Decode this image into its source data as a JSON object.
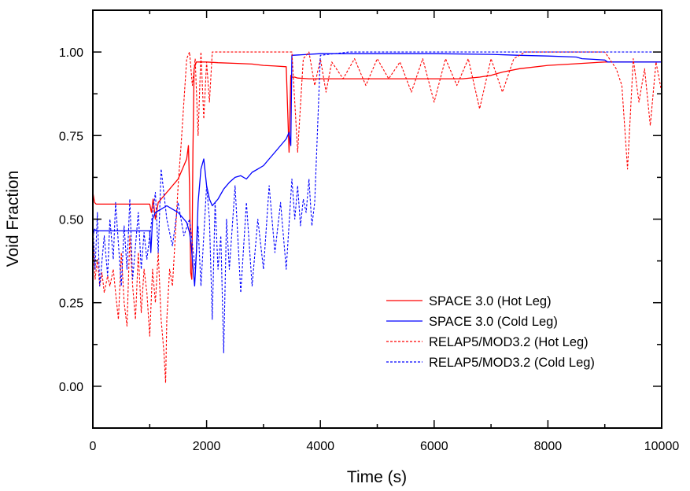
{
  "chart_data": {
    "type": "line",
    "title": "",
    "xlabel": "Time (s)",
    "ylabel": "Void Fraction",
    "xlim": [
      0,
      10000
    ],
    "ylim": [
      -0.125,
      1.125
    ],
    "x_ticks": [
      0,
      2000,
      4000,
      6000,
      8000,
      10000
    ],
    "x_tick_labels": [
      "0",
      "2000",
      "4000",
      "6000",
      "8000",
      "10000"
    ],
    "x_minor_step": 1000,
    "y_ticks": [
      0.0,
      0.25,
      0.5,
      0.75,
      1.0
    ],
    "y_tick_labels": [
      "0.00",
      "0.25",
      "0.50",
      "0.75",
      "1.00"
    ],
    "y_minor_step": 0.125,
    "grid": false,
    "legend_position": "lower-right",
    "series": [
      {
        "name": "SPACE 3.0 (Hot Leg)",
        "color": "#ff0000",
        "style": "solid",
        "x": [
          0,
          30,
          60,
          100,
          300,
          600,
          1000,
          1030,
          1060,
          1100,
          1150,
          1200,
          1250,
          1300,
          1350,
          1400,
          1450,
          1500,
          1550,
          1600,
          1650,
          1680,
          1700,
          1720,
          1740,
          1760,
          1780,
          1800,
          1820,
          1850,
          1900,
          2000,
          2200,
          2500,
          2800,
          3000,
          3200,
          3400,
          3450,
          3480,
          3500,
          3550,
          3600,
          3800,
          4000,
          4500,
          5000,
          5500,
          6000,
          6500,
          6800,
          7000,
          7200,
          7500,
          8000,
          8500,
          9000,
          9500,
          10000
        ],
        "y": [
          0.58,
          0.55,
          0.545,
          0.545,
          0.545,
          0.545,
          0.545,
          0.52,
          0.56,
          0.5,
          0.55,
          0.56,
          0.57,
          0.58,
          0.59,
          0.6,
          0.61,
          0.62,
          0.64,
          0.66,
          0.68,
          0.72,
          0.6,
          0.34,
          0.32,
          0.7,
          0.95,
          0.96,
          0.97,
          0.97,
          0.97,
          0.97,
          0.968,
          0.966,
          0.964,
          0.96,
          0.958,
          0.956,
          0.7,
          0.93,
          0.925,
          0.925,
          0.922,
          0.92,
          0.92,
          0.92,
          0.92,
          0.92,
          0.92,
          0.92,
          0.925,
          0.93,
          0.94,
          0.95,
          0.96,
          0.965,
          0.97,
          0.97,
          0.97
        ]
      },
      {
        "name": "SPACE 3.0 (Cold Leg)",
        "color": "#0000ff",
        "style": "solid",
        "x": [
          0,
          30,
          60,
          300,
          600,
          1000,
          1020,
          1050,
          1100,
          1200,
          1300,
          1400,
          1500,
          1550,
          1600,
          1650,
          1700,
          1730,
          1760,
          1790,
          1820,
          1850,
          1900,
          1950,
          2000,
          2050,
          2100,
          2200,
          2300,
          2400,
          2500,
          2600,
          2700,
          2800,
          2900,
          3000,
          3100,
          3200,
          3300,
          3400,
          3450,
          3480,
          3500,
          4000,
          5000,
          6000,
          7000,
          7500,
          8000,
          8500,
          8600,
          8800,
          9000,
          9050,
          9200,
          9500,
          10000
        ],
        "y": [
          0.45,
          0.47,
          0.465,
          0.465,
          0.465,
          0.465,
          0.4,
          0.5,
          0.52,
          0.53,
          0.54,
          0.53,
          0.52,
          0.51,
          0.5,
          0.49,
          0.46,
          0.42,
          0.36,
          0.3,
          0.4,
          0.55,
          0.65,
          0.68,
          0.6,
          0.56,
          0.54,
          0.56,
          0.59,
          0.61,
          0.625,
          0.63,
          0.62,
          0.64,
          0.65,
          0.66,
          0.68,
          0.7,
          0.72,
          0.74,
          0.76,
          0.72,
          0.99,
          0.995,
          0.995,
          0.995,
          0.993,
          0.99,
          0.988,
          0.985,
          0.98,
          0.978,
          0.976,
          0.97,
          0.97,
          0.97,
          0.97
        ]
      },
      {
        "name": "RELAP5/MOD3.2 (Hot Leg)",
        "color": "#ff0000",
        "style": "dashed",
        "x": [
          0,
          40,
          80,
          120,
          160,
          200,
          260,
          300,
          360,
          400,
          450,
          500,
          550,
          600,
          650,
          700,
          750,
          800,
          850,
          900,
          950,
          1000,
          1050,
          1100,
          1150,
          1200,
          1250,
          1280,
          1300,
          1350,
          1400,
          1450,
          1500,
          1550,
          1600,
          1650,
          1700,
          1750,
          1800,
          1850,
          1900,
          1950,
          2000,
          2050,
          2100,
          2200,
          2500,
          3000,
          3500,
          3600,
          3700,
          3800,
          3900,
          4000,
          4100,
          4200,
          4400,
          4600,
          4800,
          5000,
          5200,
          5400,
          5600,
          5800,
          6000,
          6200,
          6400,
          6600,
          6800,
          7000,
          7200,
          7400,
          7600,
          8000,
          8500,
          9000,
          9200,
          9300,
          9400,
          9500,
          9600,
          9700,
          9800,
          9900,
          10000
        ],
        "y": [
          0.45,
          0.32,
          0.38,
          0.3,
          0.34,
          0.28,
          0.33,
          0.3,
          0.35,
          0.28,
          0.2,
          0.4,
          0.25,
          0.18,
          0.45,
          0.3,
          0.2,
          0.4,
          0.22,
          0.35,
          0.28,
          0.15,
          0.35,
          0.25,
          0.4,
          0.2,
          0.1,
          0.01,
          0.2,
          0.35,
          0.3,
          0.45,
          0.6,
          0.72,
          0.85,
          0.98,
          1.0,
          0.9,
          0.98,
          0.75,
          1.0,
          0.8,
          0.97,
          0.85,
          1.0,
          1.0,
          1.0,
          1.0,
          1.0,
          0.7,
          0.98,
          1.0,
          0.9,
          0.98,
          0.88,
          0.97,
          0.92,
          0.98,
          0.9,
          0.98,
          0.92,
          0.97,
          0.88,
          0.98,
          0.85,
          0.98,
          0.9,
          0.98,
          0.83,
          0.98,
          0.88,
          0.98,
          1.0,
          1.0,
          1.0,
          1.0,
          0.95,
          0.9,
          0.65,
          0.98,
          0.85,
          0.95,
          0.78,
          0.97,
          0.88
        ]
      },
      {
        "name": "RELAP5/MOD3.2 (Cold Leg)",
        "color": "#0000ff",
        "style": "dashed",
        "x": [
          0,
          40,
          80,
          120,
          200,
          260,
          300,
          360,
          400,
          500,
          550,
          600,
          650,
          700,
          800,
          850,
          900,
          950,
          1000,
          1100,
          1150,
          1200,
          1300,
          1400,
          1500,
          1600,
          1700,
          1800,
          1850,
          1900,
          2000,
          2050,
          2100,
          2150,
          2200,
          2250,
          2300,
          2350,
          2400,
          2500,
          2600,
          2700,
          2800,
          2900,
          3000,
          3100,
          3200,
          3300,
          3400,
          3500,
          3550,
          3600,
          3650,
          3700,
          3750,
          3800,
          3850,
          3900,
          4000,
          4500,
          5000,
          6000,
          7000,
          8000,
          9000,
          10000
        ],
        "y": [
          0.48,
          0.35,
          0.52,
          0.3,
          0.45,
          0.33,
          0.5,
          0.38,
          0.55,
          0.3,
          0.48,
          0.35,
          0.56,
          0.32,
          0.52,
          0.35,
          0.46,
          0.38,
          0.45,
          0.58,
          0.4,
          0.65,
          0.5,
          0.42,
          0.55,
          0.45,
          0.5,
          0.35,
          0.48,
          0.3,
          0.6,
          0.5,
          0.2,
          0.55,
          0.35,
          0.45,
          0.1,
          0.5,
          0.35,
          0.6,
          0.28,
          0.55,
          0.3,
          0.5,
          0.35,
          0.6,
          0.4,
          0.55,
          0.35,
          0.62,
          0.5,
          0.6,
          0.48,
          0.56,
          0.52,
          0.62,
          0.48,
          0.55,
          0.99,
          1.0,
          1.0,
          1.0,
          1.0,
          1.0,
          1.0,
          1.0
        ]
      }
    ]
  }
}
